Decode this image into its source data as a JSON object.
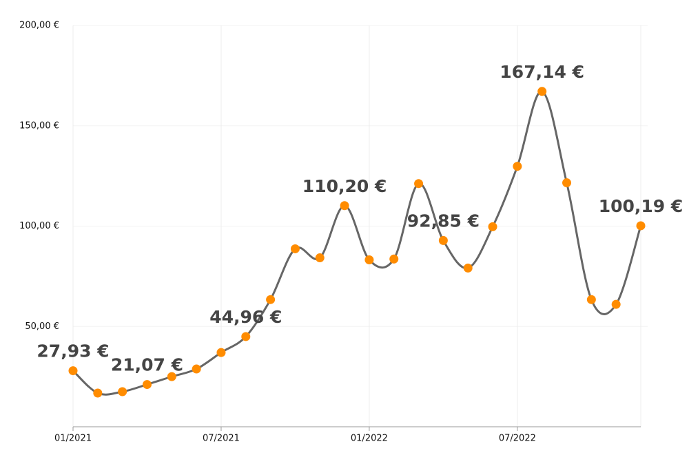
{
  "chart_data": {
    "type": "line",
    "categories": [
      "01/2021",
      null,
      null,
      null,
      null,
      null,
      "07/2021",
      null,
      null,
      null,
      null,
      null,
      "01/2022",
      null,
      null,
      null,
      null,
      null,
      "07/2022",
      null,
      null,
      null,
      null,
      null
    ],
    "series": [
      {
        "color": "#ff8c00",
        "line_color": "#666666",
        "values": [
          27.93,
          16.8,
          17.5,
          21.07,
          25.0,
          28.8,
          37.0,
          44.96,
          63.4,
          88.7,
          84.2,
          110.2,
          83.2,
          83.6,
          121.2,
          92.85,
          79.1,
          99.7,
          129.8,
          167.14,
          121.6,
          63.4,
          61.0,
          100.19
        ],
        "value_labels": [
          "27,93 €",
          null,
          null,
          "21,07 €",
          null,
          null,
          null,
          "44,96 €",
          null,
          null,
          null,
          "110,20 €",
          null,
          null,
          null,
          "92,85 €",
          null,
          null,
          null,
          "167,14 €",
          null,
          null,
          null,
          "100,19 €"
        ]
      }
    ],
    "ylim": [
      0,
      200
    ],
    "yticks": [
      {
        "value": 50,
        "label": "50,00 €"
      },
      {
        "value": 100,
        "label": "100,00 €"
      },
      {
        "value": 150,
        "label": "150,00 €"
      },
      {
        "value": 200,
        "label": "200,00 €"
      }
    ],
    "grid": true
  }
}
